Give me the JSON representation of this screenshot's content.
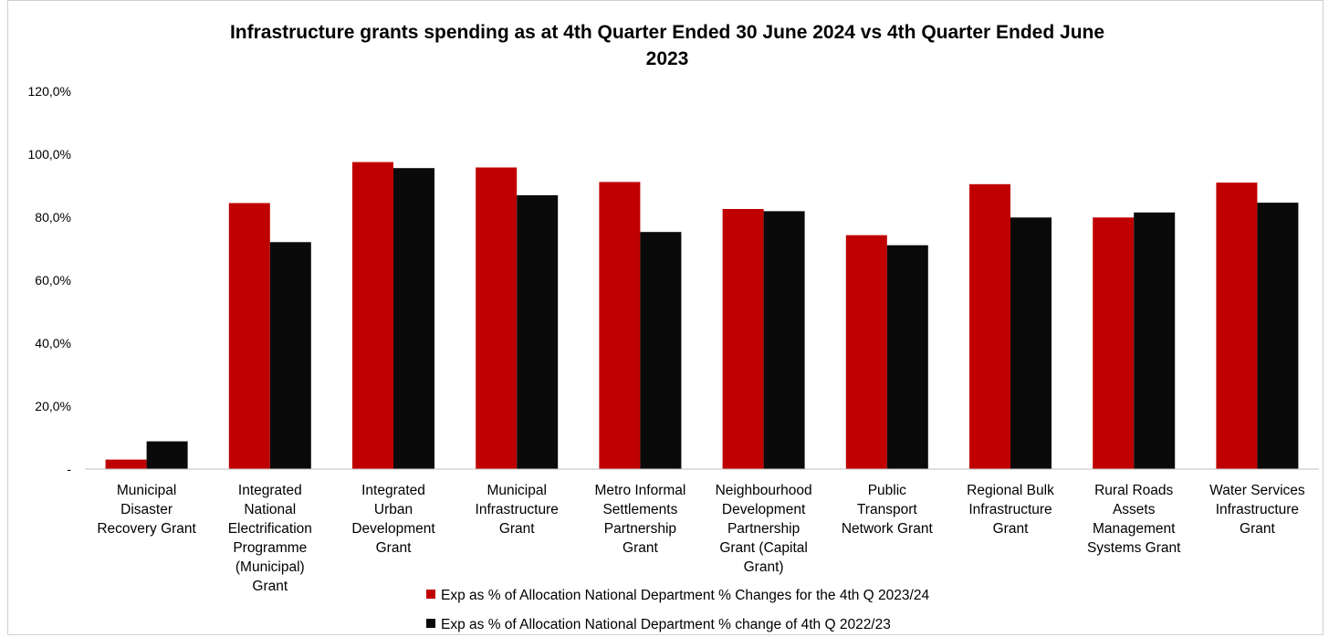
{
  "chart_data": {
    "type": "bar",
    "title_lines": [
      "Infrastructure grants spending as at 4th Quarter Ended 30 June 2024 vs 4th Quarter Ended June",
      "2023"
    ],
    "y_ticks": [
      "-",
      "20,0%",
      "40,0%",
      "60,0%",
      "80,0%",
      "100,0%",
      "120,0%"
    ],
    "ylim": [
      0,
      120
    ],
    "grid": false,
    "legend_position": "bottom",
    "categories": [
      [
        "Municipal",
        "Disaster",
        "Recovery Grant"
      ],
      [
        "Integrated",
        "National",
        "Electrification",
        "Programme",
        "(Municipal)",
        "Grant"
      ],
      [
        "Integrated",
        "Urban",
        "Development",
        "Grant"
      ],
      [
        "Municipal",
        "Infrastructure",
        "Grant"
      ],
      [
        "Metro Informal",
        "Settlements",
        "Partnership",
        "Grant"
      ],
      [
        "Neighbourhood",
        "Development",
        "Partnership",
        "Grant (Capital",
        "Grant)"
      ],
      [
        "Public",
        "Transport",
        "Network Grant"
      ],
      [
        "Regional Bulk",
        "Infrastructure",
        "Grant"
      ],
      [
        "Rural Roads",
        "Assets",
        "Management",
        "Systems Grant"
      ],
      [
        "Water Services",
        "Infrastructure",
        "Grant"
      ]
    ],
    "series": [
      {
        "name": "Exp as % of Allocation National Department % Changes for the 4th Q 2023/24",
        "color": "#c00000",
        "values": [
          3.0,
          84.5,
          97.5,
          95.8,
          91.2,
          82.6,
          74.3,
          90.5,
          79.9,
          91.0
        ]
      },
      {
        "name": "Exp as % of Allocation National Department % change of 4th Q 2022/23",
        "color": "#0a0a0a",
        "values": [
          8.8,
          72.1,
          95.6,
          87.0,
          75.3,
          81.9,
          71.1,
          79.9,
          81.5,
          84.6
        ]
      }
    ]
  }
}
